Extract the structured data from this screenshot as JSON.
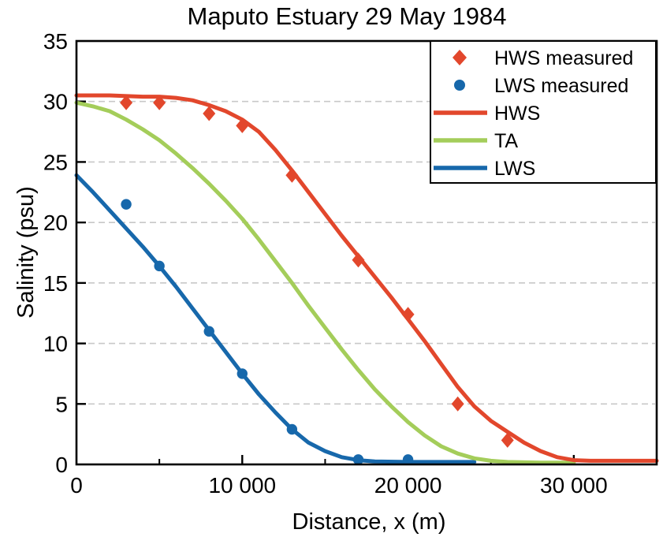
{
  "figure": {
    "background": "#ffffff",
    "axis_color": "#000000",
    "grid_color": "#c8c8c8"
  },
  "chart_data": {
    "type": "line",
    "title": "Maputo Estuary 29 May 1984",
    "xlabel": "Distance, x (m)",
    "ylabel": "Salinity (psu)",
    "xlim": [
      0,
      35000
    ],
    "ylim": [
      0,
      35
    ],
    "grid": {
      "horizontal": true,
      "vertical": false,
      "style": "dashed",
      "at": [
        5,
        10,
        15,
        20,
        25,
        30
      ]
    },
    "x_major_ticks": [
      {
        "value": 0,
        "label": "0"
      },
      {
        "value": 10000,
        "label": "10 000"
      },
      {
        "value": 20000,
        "label": "20 000"
      },
      {
        "value": 30000,
        "label": "30 000"
      }
    ],
    "x_minor_ticks": [
      5000,
      15000,
      25000
    ],
    "y_ticks": [
      {
        "value": 0,
        "label": "0"
      },
      {
        "value": 5,
        "label": "5"
      },
      {
        "value": 10,
        "label": "10"
      },
      {
        "value": 15,
        "label": "15"
      },
      {
        "value": 20,
        "label": "20"
      },
      {
        "value": 25,
        "label": "25"
      },
      {
        "value": 30,
        "label": "30"
      },
      {
        "value": 35,
        "label": "35"
      }
    ],
    "legend": {
      "position": "top-right",
      "entries": [
        "HWS measured",
        "LWS measured",
        "HWS",
        "TA",
        "LWS"
      ]
    },
    "series": [
      {
        "name": "HWS measured",
        "type": "scatter",
        "marker": "diamond",
        "color": "#e2472c",
        "points": [
          [
            3000,
            29.9
          ],
          [
            5000,
            29.9
          ],
          [
            8000,
            29.0
          ],
          [
            10000,
            28.0
          ],
          [
            13000,
            23.9
          ],
          [
            17000,
            16.9
          ],
          [
            20000,
            12.4
          ],
          [
            23000,
            5.0
          ],
          [
            26000,
            2.0
          ]
        ]
      },
      {
        "name": "LWS measured",
        "type": "scatter",
        "marker": "circle",
        "color": "#1768ab",
        "points": [
          [
            3000,
            21.5
          ],
          [
            5000,
            16.4
          ],
          [
            8000,
            11.0
          ],
          [
            10000,
            7.5
          ],
          [
            13000,
            2.9
          ],
          [
            17000,
            0.4
          ],
          [
            20000,
            0.4
          ]
        ]
      },
      {
        "name": "HWS",
        "type": "line",
        "color": "#e2472c",
        "points": [
          [
            0,
            30.5
          ],
          [
            2000,
            30.5
          ],
          [
            4000,
            30.4
          ],
          [
            5000,
            30.4
          ],
          [
            6000,
            30.3
          ],
          [
            7000,
            30.1
          ],
          [
            8000,
            29.7
          ],
          [
            9000,
            29.2
          ],
          [
            10000,
            28.5
          ],
          [
            11000,
            27.5
          ],
          [
            12000,
            26.0
          ],
          [
            13000,
            24.3
          ],
          [
            14000,
            22.5
          ],
          [
            15000,
            20.7
          ],
          [
            16000,
            18.9
          ],
          [
            17000,
            17.2
          ],
          [
            18000,
            15.5
          ],
          [
            19000,
            13.8
          ],
          [
            20000,
            12.0
          ],
          [
            21000,
            10.2
          ],
          [
            22000,
            8.3
          ],
          [
            23000,
            6.4
          ],
          [
            24000,
            4.8
          ],
          [
            25000,
            3.6
          ],
          [
            26000,
            2.7
          ],
          [
            27000,
            1.8
          ],
          [
            28000,
            1.1
          ],
          [
            29000,
            0.6
          ],
          [
            30000,
            0.35
          ],
          [
            31000,
            0.3
          ],
          [
            33000,
            0.3
          ],
          [
            35000,
            0.3
          ]
        ]
      },
      {
        "name": "TA",
        "type": "line",
        "color": "#a4cd5a",
        "points": [
          [
            0,
            29.9
          ],
          [
            1000,
            29.6
          ],
          [
            2000,
            29.2
          ],
          [
            3000,
            28.5
          ],
          [
            4000,
            27.7
          ],
          [
            5000,
            26.8
          ],
          [
            6000,
            25.7
          ],
          [
            7000,
            24.5
          ],
          [
            8000,
            23.2
          ],
          [
            9000,
            21.8
          ],
          [
            10000,
            20.3
          ],
          [
            11000,
            18.6
          ],
          [
            12000,
            16.8
          ],
          [
            13000,
            15.0
          ],
          [
            14000,
            13.1
          ],
          [
            15000,
            11.3
          ],
          [
            16000,
            9.5
          ],
          [
            17000,
            7.8
          ],
          [
            18000,
            6.2
          ],
          [
            19000,
            4.8
          ],
          [
            20000,
            3.5
          ],
          [
            21000,
            2.4
          ],
          [
            22000,
            1.5
          ],
          [
            23000,
            0.9
          ],
          [
            24000,
            0.5
          ],
          [
            25000,
            0.3
          ],
          [
            26000,
            0.2
          ],
          [
            28000,
            0.15
          ],
          [
            30000,
            0.15
          ]
        ]
      },
      {
        "name": "LWS",
        "type": "line",
        "color": "#1768ab",
        "points": [
          [
            0,
            23.9
          ],
          [
            1000,
            22.5
          ],
          [
            2000,
            21.0
          ],
          [
            3000,
            19.5
          ],
          [
            4000,
            18.0
          ],
          [
            5000,
            16.4
          ],
          [
            6000,
            14.7
          ],
          [
            7000,
            12.9
          ],
          [
            8000,
            11.1
          ],
          [
            9000,
            9.3
          ],
          [
            10000,
            7.5
          ],
          [
            11000,
            5.8
          ],
          [
            12000,
            4.3
          ],
          [
            13000,
            2.9
          ],
          [
            14000,
            1.8
          ],
          [
            15000,
            1.1
          ],
          [
            16000,
            0.6
          ],
          [
            17000,
            0.35
          ],
          [
            18000,
            0.25
          ],
          [
            20000,
            0.2
          ],
          [
            22000,
            0.2
          ],
          [
            24000,
            0.2
          ]
        ]
      }
    ]
  }
}
